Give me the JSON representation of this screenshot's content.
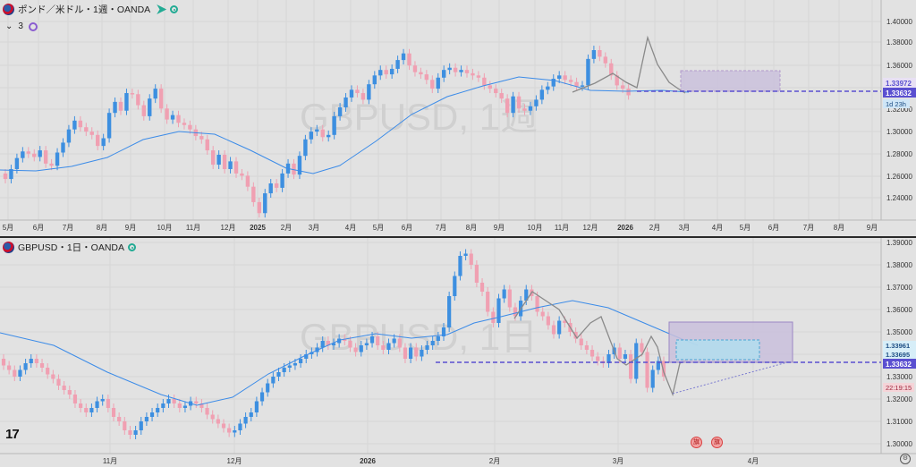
{
  "top": {
    "title": "ポンド／米ドル・1週・OANDA",
    "indicator_count": "3",
    "watermark": "GBPUSD, 1週",
    "price_axis": [
      "1.40000",
      "1.38000",
      "1.36000",
      "1.34000",
      "1.32000",
      "1.30000",
      "1.28000",
      "1.26000",
      "1.24000"
    ],
    "badges": {
      "upper": "1.33972",
      "current": "1.33632",
      "countdown": "1d 23h"
    },
    "time_axis": [
      "5月",
      "6月",
      "7月",
      "8月",
      "9月",
      "10月",
      "11月",
      "12月",
      "2025",
      "2月",
      "3月",
      "4月",
      "5月",
      "6月",
      "7月",
      "8月",
      "9月",
      "10月",
      "11月",
      "12月",
      "2026",
      "2月",
      "3月",
      "4月",
      "5月",
      "6月",
      "7月",
      "8月",
      "9月"
    ]
  },
  "bottom": {
    "title": "GBPUSD・1日・OANDA",
    "watermark": "GBPUSD, 1日",
    "price_axis": [
      "1.39000",
      "1.38000",
      "1.37000",
      "1.36000",
      "1.35000",
      "1.34000",
      "1.33000",
      "1.32000",
      "1.31000",
      "1.30000"
    ],
    "badges": {
      "b1": "1.33961",
      "b2": "1.33695",
      "current": "1.33632",
      "time": "22:19:15"
    },
    "time_axis": [
      "11月",
      "12月",
      "2026",
      "2月",
      "3月",
      "4月"
    ]
  },
  "colors": {
    "up": "#3d8fe0",
    "down": "#f0a0b2",
    "ma": "#3b8be8",
    "level": "#5a4fd0",
    "box_purple": "#c9bfdc",
    "box_blue": "#aee0f0",
    "bg": "#e2e2e2"
  }
}
